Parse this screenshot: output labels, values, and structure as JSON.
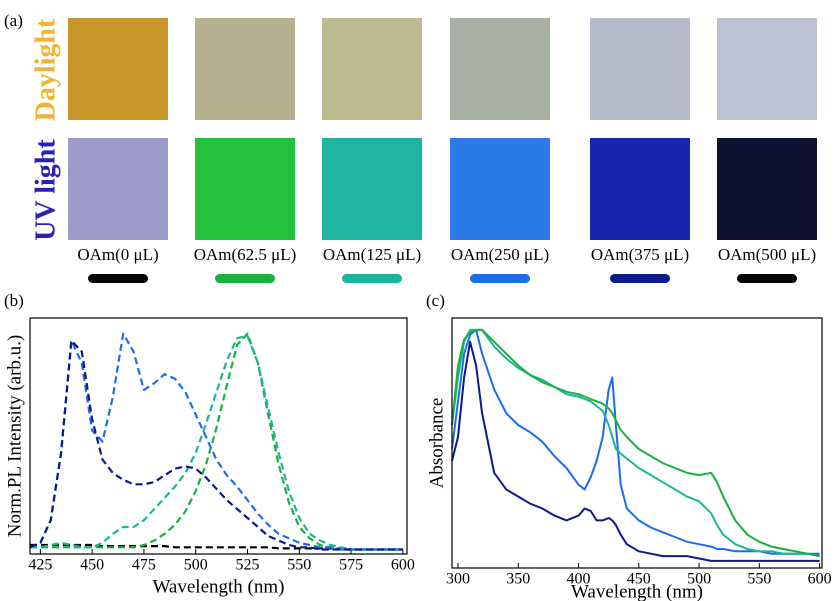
{
  "panel_a": {
    "label": "(a)",
    "rows": [
      {
        "label": "Daylight",
        "color": "#f2b233",
        "photos": [
          "#c9962c",
          "#b7b08f",
          "#bfb98f",
          "#a8b0a2",
          "#b4bccb",
          "#b9c2d3"
        ]
      },
      {
        "label": "UV light",
        "color": "#2c1fb4",
        "photos": [
          "#9c9ac8",
          "#22c23c",
          "#1db4a0",
          "#2c7ae8",
          "#1626ae",
          "#0c1130"
        ]
      }
    ],
    "samples": [
      {
        "label": "OAm(0 μL)",
        "color": "#000000"
      },
      {
        "label": "OAm(62.5 μL)",
        "color": "#16b23a"
      },
      {
        "label": "OAm(125 μL)",
        "color": "#1db49c"
      },
      {
        "label": "OAm(250 μL)",
        "color": "#1c6cf0"
      },
      {
        "label": "OAm(375 μL)",
        "color": "#0c1a8a"
      },
      {
        "label": "OAm(500 μL)",
        "color": "#000000"
      }
    ]
  },
  "chart_data": [
    {
      "type": "line",
      "panel_label": "(b)",
      "x_label": "Wavelength (nm)",
      "y_label": "Norm.PL Intensity (arb.u.)",
      "dashed": true,
      "xlim": [
        420,
        602
      ],
      "xticks": [
        425,
        450,
        475,
        500,
        525,
        550,
        575,
        600
      ],
      "ylim": [
        0,
        1.05
      ],
      "x": [
        420,
        425,
        430,
        435,
        440,
        445,
        450,
        455,
        460,
        465,
        470,
        475,
        480,
        485,
        490,
        495,
        500,
        505,
        510,
        515,
        520,
        525,
        530,
        535,
        540,
        545,
        550,
        555,
        560,
        565,
        570,
        575,
        580,
        585,
        590,
        595,
        600
      ],
      "series": [
        {
          "color": "#000000",
          "values": [
            0.04,
            0.04,
            0.04,
            0.04,
            0.04,
            0.04,
            0.04,
            0.035,
            0.035,
            0.035,
            0.035,
            0.035,
            0.035,
            0.035,
            0.03,
            0.03,
            0.03,
            0.03,
            0.03,
            0.03,
            0.03,
            0.03,
            0.03,
            0.03,
            0.025,
            0.025,
            0.025,
            0.025,
            0.025,
            0.025,
            0.025,
            0.02,
            0.02,
            0.02,
            0.02,
            0.02,
            0.02
          ]
        },
        {
          "color": "#16b23a",
          "values": [
            0.03,
            0.03,
            0.03,
            0.03,
            0.03,
            0.03,
            0.03,
            0.03,
            0.03,
            0.03,
            0.03,
            0.04,
            0.06,
            0.09,
            0.13,
            0.19,
            0.28,
            0.4,
            0.56,
            0.75,
            0.93,
            0.98,
            0.85,
            0.62,
            0.4,
            0.23,
            0.12,
            0.07,
            0.04,
            0.03,
            0.02,
            0.02,
            0.02,
            0.02,
            0.02,
            0.02,
            0.02
          ]
        },
        {
          "color": "#1db49c",
          "values": [
            0.03,
            0.03,
            0.04,
            0.05,
            0.04,
            0.03,
            0.03,
            0.05,
            0.09,
            0.12,
            0.12,
            0.15,
            0.2,
            0.25,
            0.3,
            0.36,
            0.45,
            0.58,
            0.72,
            0.86,
            0.96,
            0.97,
            0.85,
            0.65,
            0.45,
            0.28,
            0.16,
            0.09,
            0.06,
            0.04,
            0.03,
            0.02,
            0.02,
            0.02,
            0.02,
            0.02,
            0.02
          ]
        },
        {
          "color": "#1c6cf0",
          "values": [
            0.03,
            0.05,
            0.15,
            0.45,
            0.95,
            0.85,
            0.55,
            0.5,
            0.7,
            0.98,
            0.9,
            0.73,
            0.76,
            0.8,
            0.78,
            0.72,
            0.62,
            0.52,
            0.42,
            0.35,
            0.3,
            0.24,
            0.18,
            0.13,
            0.09,
            0.07,
            0.05,
            0.04,
            0.03,
            0.03,
            0.02,
            0.02,
            0.02,
            0.02,
            0.02,
            0.02,
            0.02
          ]
        },
        {
          "color": "#0c1a8a",
          "values": [
            0.03,
            0.05,
            0.15,
            0.45,
            0.95,
            0.9,
            0.6,
            0.42,
            0.36,
            0.33,
            0.31,
            0.31,
            0.32,
            0.35,
            0.38,
            0.39,
            0.38,
            0.34,
            0.29,
            0.24,
            0.2,
            0.16,
            0.12,
            0.08,
            0.06,
            0.04,
            0.03,
            0.03,
            0.02,
            0.02,
            0.02,
            0.02,
            0.02,
            0.02,
            0.02,
            0.02,
            0.02
          ]
        }
      ]
    },
    {
      "type": "line",
      "panel_label": "(c)",
      "x_label": "Wavelength (nm)",
      "y_label": "Absorbance",
      "dashed": false,
      "xlim": [
        295,
        602
      ],
      "xticks": [
        300,
        350,
        400,
        450,
        500,
        550,
        600
      ],
      "ylim": [
        0,
        1.05
      ],
      "x": [
        295,
        300,
        305,
        310,
        315,
        320,
        330,
        340,
        350,
        360,
        370,
        380,
        390,
        400,
        405,
        410,
        415,
        420,
        425,
        428,
        431,
        435,
        440,
        450,
        460,
        470,
        480,
        490,
        500,
        510,
        515,
        520,
        530,
        540,
        550,
        560,
        570,
        580,
        590,
        600
      ],
      "series": [
        {
          "color": "#0c1a8a",
          "values": [
            0.45,
            0.55,
            0.8,
            0.95,
            0.85,
            0.65,
            0.4,
            0.33,
            0.3,
            0.27,
            0.25,
            0.22,
            0.2,
            0.22,
            0.25,
            0.24,
            0.2,
            0.2,
            0.21,
            0.2,
            0.18,
            0.14,
            0.1,
            0.07,
            0.06,
            0.05,
            0.05,
            0.05,
            0.04,
            0.03,
            0.03,
            0.03,
            0.03,
            0.03,
            0.03,
            0.03,
            0.03,
            0.03,
            0.03,
            0.03
          ]
        },
        {
          "color": "#1c6cf0",
          "values": [
            0.5,
            0.7,
            0.9,
            0.98,
            1.0,
            0.9,
            0.75,
            0.65,
            0.6,
            0.57,
            0.53,
            0.47,
            0.42,
            0.35,
            0.33,
            0.38,
            0.45,
            0.55,
            0.75,
            0.8,
            0.6,
            0.35,
            0.25,
            0.2,
            0.17,
            0.15,
            0.13,
            0.11,
            0.1,
            0.09,
            0.08,
            0.08,
            0.07,
            0.07,
            0.07,
            0.06,
            0.06,
            0.06,
            0.06,
            0.06
          ]
        },
        {
          "color": "#1db49c",
          "values": [
            0.6,
            0.8,
            0.95,
            1.0,
            1.0,
            1.0,
            0.93,
            0.88,
            0.84,
            0.81,
            0.79,
            0.76,
            0.73,
            0.72,
            0.71,
            0.7,
            0.68,
            0.66,
            0.6,
            0.55,
            0.5,
            0.48,
            0.46,
            0.42,
            0.39,
            0.36,
            0.33,
            0.3,
            0.28,
            0.23,
            0.18,
            0.14,
            0.1,
            0.08,
            0.07,
            0.07,
            0.06,
            0.06,
            0.06,
            0.05
          ]
        },
        {
          "color": "#16b23a",
          "values": [
            0.6,
            0.85,
            0.96,
            0.99,
            1.0,
            1.0,
            0.95,
            0.9,
            0.85,
            0.81,
            0.78,
            0.76,
            0.74,
            0.73,
            0.72,
            0.71,
            0.7,
            0.69,
            0.67,
            0.65,
            0.62,
            0.58,
            0.55,
            0.5,
            0.47,
            0.44,
            0.42,
            0.4,
            0.39,
            0.4,
            0.36,
            0.3,
            0.2,
            0.14,
            0.11,
            0.09,
            0.08,
            0.07,
            0.06,
            0.05
          ]
        }
      ]
    }
  ]
}
